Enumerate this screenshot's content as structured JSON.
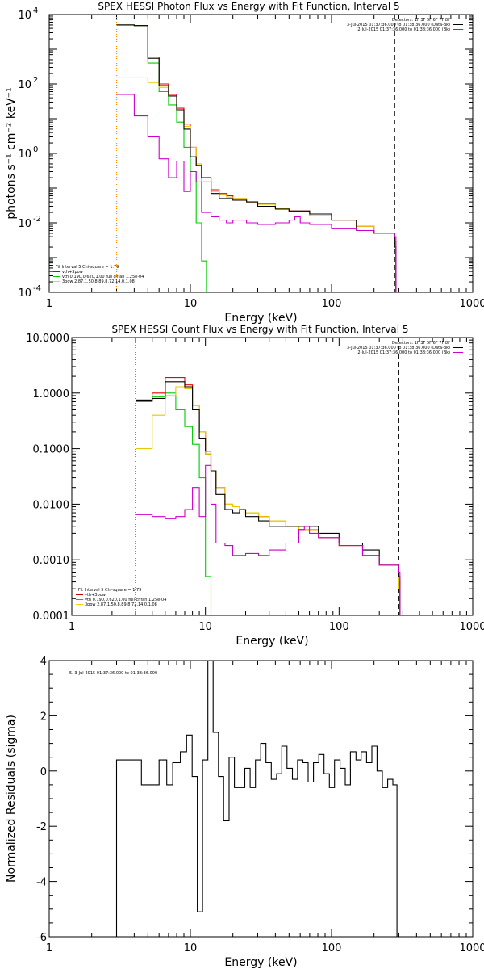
{
  "chart_data": [
    {
      "type": "line",
      "title": "SPEX HESSI Photon Flux vs Energy with Fit Function, Interval 5",
      "xlabel": "Energy (keV)",
      "ylabel": "photons s⁻¹ cm⁻² keV⁻¹",
      "xscale": "log",
      "yscale": "log",
      "xlim": [
        1,
        1000
      ],
      "ylim": [
        0.0001,
        10000
      ],
      "xticks": [
        "1",
        "10",
        "100",
        "1000"
      ],
      "yticks": [
        {
          "value": 0.0001,
          "base": "10",
          "exp": "-4"
        },
        {
          "value": 0.01,
          "base": "10",
          "exp": "-2"
        },
        {
          "value": 1,
          "base": "10",
          "exp": "0"
        },
        {
          "value": 100,
          "base": "10",
          "exp": "2"
        },
        {
          "value": 10000,
          "base": "10",
          "exp": "4"
        }
      ],
      "vlines": [
        {
          "x": 3.0,
          "style": "dotted",
          "color": "#ff8c00"
        },
        {
          "x": 280,
          "style": "dashed",
          "color": "#000000"
        }
      ],
      "legend_top_right": [
        {
          "text": "Detectors: 1F 3F 5F 6F 7F 8F",
          "color": ""
        },
        {
          "text": "3-Jul-2015 01:37:36.000 to 01:38:36.000 (Data-Bk)",
          "color": "#000000"
        },
        {
          "text": "2-Jul-2015 01:37:36.000 to 01:38:36.000 (Bk)",
          "color": "#cc00cc"
        }
      ],
      "legend_bottom_left": [
        {
          "text": "Fit Interval 5   Chi-square = 1.79",
          "color": ""
        },
        {
          "text": "vth+3pow",
          "color": "#cc0000"
        },
        {
          "text": "vth 0.190,0.620,1.00  full chfan 1.25e-04",
          "color": "#00cc00"
        },
        {
          "text": "3pow 2.87,1.50,8.89,8.72,14.0,1.08",
          "color": "#ffd000"
        }
      ],
      "series": [
        {
          "name": "vth+3pow",
          "color": "#ee0000",
          "x": [
            3,
            4,
            5,
            6,
            7,
            8,
            9,
            10,
            11,
            12,
            14,
            16,
            18,
            20,
            25,
            30,
            40,
            50,
            70,
            100,
            150,
            200,
            280
          ],
          "y": [
            5000,
            4800,
            600,
            100,
            50,
            20,
            7,
            1.5,
            0.45,
            0.15,
            0.09,
            0.07,
            0.06,
            0.05,
            0.04,
            0.035,
            0.027,
            0.022,
            0.016,
            0.012,
            0.008,
            0.005,
            0.003
          ]
        },
        {
          "name": "vth",
          "color": "#00cc00",
          "x": [
            3,
            4,
            5,
            6,
            7,
            8,
            9,
            10,
            11,
            12,
            13
          ],
          "y": [
            5000,
            4800,
            400,
            60,
            25,
            8,
            1.5,
            0.3,
            0.01,
            0.0008,
            5e-05
          ]
        },
        {
          "name": "3pow",
          "color": "#e8c800",
          "x": [
            3,
            4,
            5,
            6,
            7,
            8,
            9,
            10,
            11,
            12,
            14,
            16,
            18,
            20,
            25,
            30,
            40,
            50,
            70,
            100,
            150,
            200,
            280
          ],
          "y": [
            150,
            150,
            110,
            80,
            45,
            18,
            6,
            1.5,
            0.5,
            0.15,
            0.08,
            0.065,
            0.055,
            0.05,
            0.04,
            0.034,
            0.026,
            0.021,
            0.016,
            0.012,
            0.008,
            0.005,
            0.0028
          ]
        },
        {
          "name": "Data-Bk",
          "color": "#000000",
          "x": [
            3,
            4,
            5,
            6,
            7,
            8,
            9,
            10,
            11,
            12,
            14,
            16,
            18,
            20,
            25,
            30,
            40,
            50,
            70,
            100,
            150,
            200,
            280
          ],
          "y": [
            5000,
            4800,
            550,
            90,
            45,
            18,
            5,
            0.8,
            0.45,
            0.2,
            0.07,
            0.05,
            0.05,
            0.045,
            0.04,
            0.03,
            0.025,
            0.022,
            0.018,
            0.012,
            0.006,
            0.005,
            0.002
          ]
        },
        {
          "name": "Bk",
          "color": "#cc00cc",
          "x": [
            3,
            4,
            5,
            6,
            7,
            8,
            9,
            10,
            11,
            12,
            14,
            16,
            18,
            20,
            25,
            30,
            40,
            50,
            55,
            60,
            70,
            100,
            150,
            200,
            280
          ],
          "y": [
            50,
            12,
            3,
            0.7,
            0.2,
            0.6,
            0.08,
            0.3,
            0.15,
            0.02,
            0.015,
            0.012,
            0.01,
            0.012,
            0.01,
            0.009,
            0.01,
            0.012,
            0.015,
            0.01,
            0.009,
            0.007,
            0.006,
            0.005,
            0.004
          ]
        }
      ]
    },
    {
      "type": "line",
      "title": "SPEX HESSI Count Flux vs Energy with Fit Function, Interval 5",
      "xlabel": "Energy (keV)",
      "ylabel": "",
      "xscale": "log",
      "yscale": "log",
      "xlim": [
        1,
        1000
      ],
      "ylim": [
        0.0001,
        10
      ],
      "xticks": [
        "1",
        "10",
        "100",
        "1000"
      ],
      "yticks": [
        {
          "value": 0.0001,
          "label": "0.0001"
        },
        {
          "value": 0.001,
          "label": "0.0010"
        },
        {
          "value": 0.01,
          "label": "0.0100"
        },
        {
          "value": 0.1,
          "label": "0.1000"
        },
        {
          "value": 1,
          "label": "1.0000"
        },
        {
          "value": 10,
          "label": "10.0000"
        }
      ],
      "vlines": [
        {
          "x": 3.0,
          "style": "dotted",
          "color": "#000000"
        },
        {
          "x": 280,
          "style": "dashed",
          "color": "#000000"
        }
      ],
      "legend_top_right": [
        {
          "text": "Detectors: 1F 3F 5F 6F 7F 8F",
          "color": ""
        },
        {
          "text": "3-Jul-2015 01:37:36.000 to 01:38:36.000 (Data-Bk)",
          "color": "#000000"
        },
        {
          "text": "2-Jul-2015 01:37:36.000 to 01:38:36.000 (Bk)",
          "color": "#cc00cc"
        }
      ],
      "legend_bottom_left": [
        {
          "text": "Fit Interval 5   Chi-square = 1.79",
          "color": ""
        },
        {
          "text": "vth+3pow",
          "color": "#cc0000"
        },
        {
          "text": "vth 0.190,0.620,1.00  full chfan 1.25e-04",
          "color": "#00cc00"
        },
        {
          "text": "3pow 2.87,1.50,8.89,8.72,14.0,1.08",
          "color": "#ffd000"
        }
      ],
      "series": [
        {
          "name": "vth+3pow",
          "color": "#ee0000",
          "x": [
            3,
            4,
            5,
            6,
            7,
            8,
            9,
            10,
            11,
            12,
            14,
            16,
            18,
            20,
            25,
            30,
            40,
            50,
            70,
            100,
            150,
            200,
            280
          ],
          "y": [
            0.75,
            1.0,
            1.9,
            1.9,
            1.4,
            0.6,
            0.2,
            0.08,
            0.04,
            0.02,
            0.01,
            0.009,
            0.008,
            0.007,
            0.006,
            0.005,
            0.004,
            0.0035,
            0.0025,
            0.0018,
            0.0012,
            0.0008,
            0.0004
          ]
        },
        {
          "name": "vth",
          "color": "#00cc00",
          "x": [
            3,
            4,
            5,
            6,
            7,
            8,
            9,
            10,
            11,
            12
          ],
          "y": [
            0.7,
            0.85,
            1.0,
            0.5,
            0.25,
            0.12,
            0.03,
            0.0005,
            0.0001,
            5e-05
          ]
        },
        {
          "name": "3pow",
          "color": "#e8c800",
          "x": [
            3,
            4,
            5,
            6,
            7,
            8,
            9,
            10,
            11,
            12,
            14,
            16,
            18,
            20,
            25,
            30,
            40,
            50,
            70,
            100,
            150,
            200,
            280
          ],
          "y": [
            0.1,
            0.4,
            0.9,
            1.3,
            1.2,
            0.6,
            0.2,
            0.08,
            0.04,
            0.02,
            0.01,
            0.009,
            0.008,
            0.007,
            0.006,
            0.005,
            0.004,
            0.0035,
            0.0025,
            0.0018,
            0.0012,
            0.0008,
            0.0003
          ]
        },
        {
          "name": "Data-Bk",
          "color": "#000000",
          "x": [
            3,
            4,
            5,
            6,
            7,
            8,
            9,
            10,
            11,
            12,
            14,
            16,
            18,
            20,
            25,
            30,
            40,
            50,
            70,
            100,
            150,
            200,
            280
          ],
          "y": [
            0.75,
            0.8,
            1.6,
            1.6,
            1.3,
            0.5,
            0.15,
            0.09,
            0.04,
            0.015,
            0.008,
            0.007,
            0.008,
            0.006,
            0.005,
            0.004,
            0.004,
            0.004,
            0.003,
            0.002,
            0.0015,
            0.0008,
            0.0005
          ]
        },
        {
          "name": "Bk",
          "color": "#cc00cc",
          "x": [
            3,
            4,
            5,
            6,
            7,
            8,
            9,
            10,
            11,
            12,
            14,
            16,
            18,
            20,
            25,
            30,
            40,
            50,
            55,
            60,
            70,
            100,
            150,
            200,
            280
          ],
          "y": [
            0.0065,
            0.006,
            0.0055,
            0.006,
            0.008,
            0.02,
            0.006,
            0.05,
            0.01,
            0.002,
            0.0018,
            0.0012,
            0.0012,
            0.0013,
            0.0012,
            0.0015,
            0.002,
            0.0035,
            0.004,
            0.003,
            0.0025,
            0.0018,
            0.0012,
            0.0008,
            0.0006
          ]
        }
      ]
    },
    {
      "type": "line",
      "title": "",
      "xlabel": "Energy (keV)",
      "ylabel": "Normalized Residuals (sigma)",
      "xscale": "log",
      "yscale": "linear",
      "xlim": [
        1,
        1000
      ],
      "ylim": [
        -6,
        4
      ],
      "xticks": [
        "1",
        "10",
        "100",
        "1000"
      ],
      "yticks": [
        {
          "value": -6,
          "label": "-6"
        },
        {
          "value": -4,
          "label": "-4"
        },
        {
          "value": -2,
          "label": "-2"
        },
        {
          "value": 0,
          "label": "0"
        },
        {
          "value": 2,
          "label": "2"
        },
        {
          "value": 4,
          "label": "4"
        }
      ],
      "legend_top_left": [
        {
          "text": "5. 3-Jul-2015 01:37:36.000 to 01:38:36.000",
          "color": "#000000"
        }
      ],
      "series": [
        {
          "name": "",
          "color": "#000000",
          "x": [
            3.0,
            3.9,
            4.5,
            5.2,
            6.0,
            6.8,
            7.5,
            8.5,
            9.4,
            10.3,
            11.2,
            12.2,
            13.3,
            14.5,
            15.8,
            17.2,
            18.8,
            20.5,
            22.3,
            24.3,
            26.5,
            28.9,
            31.5,
            34.3,
            37.4,
            40.8,
            44.4,
            48.4,
            52.8,
            57.5,
            62.7,
            68.3,
            74.5,
            81.2,
            88.5,
            96.5,
            105,
            115,
            125,
            136,
            149,
            162,
            177,
            193,
            210,
            229,
            250,
            272,
            285
          ],
          "y": [
            0.4,
            0.4,
            -0.5,
            -0.5,
            0.4,
            -0.5,
            0.3,
            0.7,
            1.3,
            -0.2,
            -5.1,
            0.4,
            4.0,
            1.4,
            -0.2,
            -1.8,
            0.5,
            -0.6,
            -0.6,
            0.1,
            -0.6,
            0.4,
            1.0,
            0.3,
            -0.3,
            -0.1,
            0.9,
            0.1,
            -0.3,
            0.4,
            0.3,
            -0.4,
            0.3,
            0.6,
            -0.1,
            -0.6,
            0.4,
            0.1,
            -0.5,
            0.7,
            0.4,
            0.7,
            0.3,
            0.9,
            0.0,
            -0.6,
            -0.3,
            -0.5,
            -0.5
          ]
        }
      ]
    }
  ]
}
